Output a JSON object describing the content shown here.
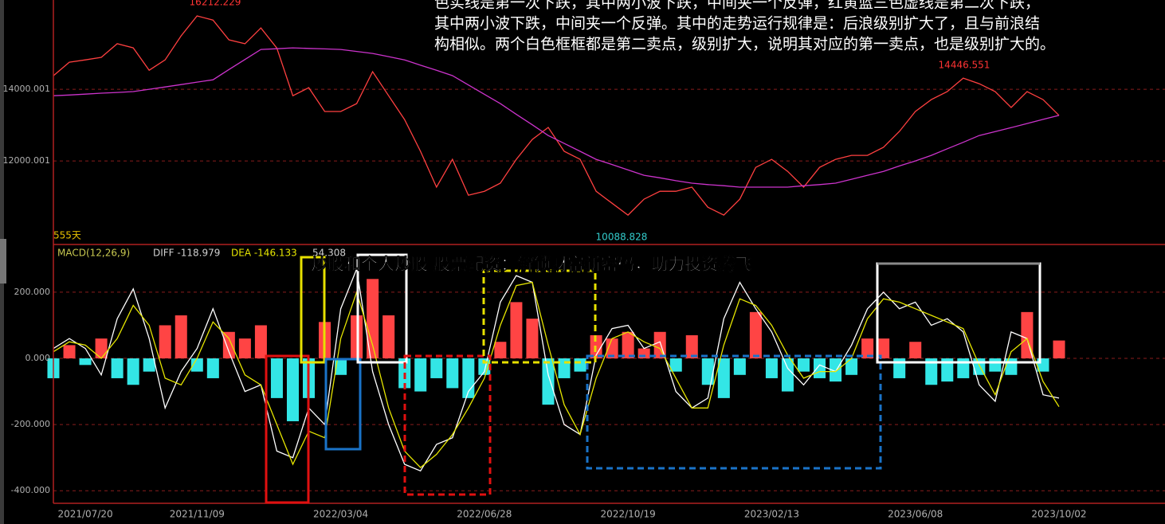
{
  "overlay_title": "炒股和个人炒股 股票配资：解锁财富新密码，助力投资腾飞",
  "paragraph": [
    "色实线是第一次下跌，其中两小波下跌，中间夹一个反弹，红黄蓝三色虚线是第二次下跌，",
    "其中两小波下跌，中间夹一个反弹。其中的走势运行规律是：后浪级别扩大了，且与前浪结",
    "构相似。两个白色框框都是第二卖点，级别扩大，说明其对应的第一卖点，也是级别扩大的。"
  ],
  "chart_data": [
    {
      "type": "line",
      "ylim": [
        9670,
        16490
      ],
      "yticks": [
        12000.001,
        14000.001
      ],
      "grid": true,
      "annotations": [
        "16212.229",
        "14446.551",
        "10088.828",
        "555天"
      ],
      "series": [
        {
          "color": "#ff4040",
          "values": [
            14378,
            14755,
            14820,
            14890,
            15270,
            15155,
            14530,
            14820,
            15490,
            16045,
            15930,
            15380,
            15270,
            15710,
            15150,
            13820,
            14045,
            13380,
            13380,
            13600,
            14490,
            13820,
            13155,
            12270,
            11270,
            12045,
            11045,
            11155,
            11380,
            12045,
            12600,
            12935,
            12270,
            12045,
            11155,
            10820,
            10490,
            10935,
            11155,
            11155,
            11270,
            10710,
            10490,
            10935,
            11820,
            12045,
            11710,
            11270,
            11820,
            12045,
            12155,
            12155,
            12380,
            12825,
            13380,
            13710,
            13935,
            14310,
            14155,
            13935,
            13490,
            13935,
            13710,
            13270
          ]
        },
        {
          "color": "#cc33cc",
          "values": [
            13820,
            13840,
            13865,
            13890,
            13910,
            13935,
            14000,
            14065,
            14130,
            14200,
            14265,
            14550,
            14830,
            15110,
            15130,
            15155,
            15140,
            15125,
            15110,
            15055,
            15000,
            14910,
            14820,
            14670,
            14530,
            14380,
            14120,
            13860,
            13600,
            13300,
            13010,
            12710,
            12490,
            12270,
            12045,
            11900,
            11750,
            11600,
            11530,
            11450,
            11380,
            11340,
            11310,
            11270,
            11270,
            11270,
            11270,
            11310,
            11340,
            11380,
            11490,
            11600,
            11710,
            11860,
            12000,
            12155,
            12340,
            12520,
            12710,
            12820,
            12930,
            13045,
            13160,
            13270
          ]
        }
      ]
    },
    {
      "type": "bar",
      "ylim": [
        -438,
        337
      ],
      "grid": true,
      "yticks": [
        {
          "value": 200,
          "label": "200.000"
        },
        {
          "value": 0,
          "label": "0.000"
        },
        {
          "value": -200,
          "label": "-200.000"
        },
        {
          "value": -400,
          "label": "-400.000"
        }
      ],
      "labels": [
        "MACD(12,26,9)",
        "DIFF -118.979",
        "DEA -146.133",
        "54.308"
      ],
      "categories": [
        null,
        null,
        "2021/07/20",
        null,
        null,
        null,
        null,
        null,
        null,
        "2021/11/09",
        null,
        null,
        null,
        null,
        null,
        null,
        null,
        null,
        "2022/03/04",
        null,
        null,
        null,
        null,
        null,
        null,
        null,
        null,
        "2022/06/28",
        null,
        null,
        null,
        null,
        null,
        null,
        null,
        null,
        "2022/10/19",
        null,
        null,
        null,
        null,
        null,
        null,
        null,
        null,
        "2023/02/13",
        null,
        null,
        null,
        null,
        null,
        null,
        null,
        null,
        "2023/06/08",
        null,
        null,
        null,
        null,
        null,
        null,
        null,
        null,
        "2023/10/02"
      ],
      "colors": {
        "positive": "#ff4444",
        "negative": "#33e6e6"
      },
      "values": [
        -60,
        40,
        -20,
        60,
        -60,
        -80,
        -40,
        100,
        130,
        -40,
        -60,
        80,
        60,
        100,
        -120,
        -190,
        -120,
        110,
        -50,
        130,
        240,
        130,
        -90,
        -100,
        -60,
        -90,
        -120,
        -50,
        50,
        170,
        120,
        -140,
        -60,
        -40,
        70,
        60,
        80,
        30,
        80,
        -40,
        70,
        -80,
        -120,
        -50,
        140,
        -60,
        -100,
        -40,
        -60,
        -70,
        -50,
        60,
        60,
        -60,
        50,
        -80,
        -70,
        -60,
        -50,
        -40,
        -50,
        140,
        -40,
        54
      ],
      "series": [
        {
          "color": "#ffffff",
          "values": [
            30,
            60,
            30,
            -50,
            120,
            210,
            60,
            -150,
            -40,
            30,
            150,
            20,
            -100,
            -80,
            -280,
            -300,
            -150,
            -200,
            150,
            270,
            -40,
            -200,
            -320,
            -340,
            -260,
            -240,
            -100,
            -40,
            170,
            250,
            230,
            -50,
            -200,
            -230,
            10,
            90,
            100,
            30,
            50,
            -100,
            -150,
            -120,
            120,
            230,
            150,
            80,
            -30,
            -80,
            -20,
            -40,
            40,
            150,
            200,
            150,
            170,
            100,
            120,
            80,
            -80,
            -130,
            80,
            60,
            -110,
            -120
          ]
        },
        {
          "color": "#e6e600",
          "values": [
            20,
            50,
            40,
            0,
            60,
            160,
            100,
            -60,
            -80,
            0,
            110,
            60,
            -50,
            -80,
            -200,
            -320,
            -220,
            -240,
            60,
            200,
            40,
            -150,
            -280,
            -330,
            -290,
            -230,
            -150,
            -60,
            100,
            220,
            230,
            40,
            -140,
            -230,
            -60,
            60,
            80,
            50,
            30,
            -60,
            -150,
            -150,
            40,
            180,
            160,
            100,
            10,
            -60,
            -40,
            -40,
            0,
            120,
            180,
            170,
            150,
            130,
            110,
            90,
            -20,
            -110,
            20,
            60,
            -70,
            -146
          ]
        }
      ]
    }
  ]
}
